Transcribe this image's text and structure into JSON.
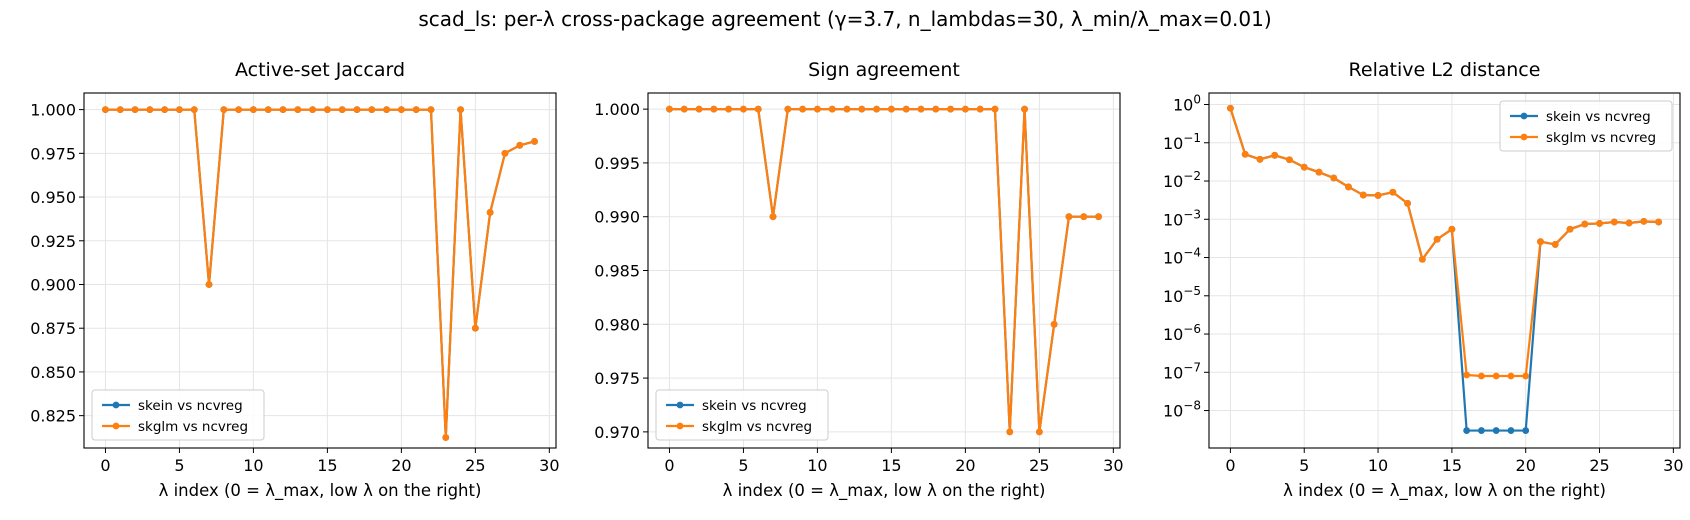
{
  "figure": {
    "title": "scad_ls: per-λ cross-package agreement (γ=3.7, n_lambdas=30, λ_min/λ_max=0.01)"
  },
  "colors": {
    "skein": "#1f77b4",
    "skglm": "#ff7f0e",
    "grid": "#e5e5e5",
    "axis": "#000000"
  },
  "chart_data": [
    {
      "type": "line",
      "title": "Active-set Jaccard",
      "xlabel": "λ index (0 = λ_max, low λ on the right)",
      "ylabel": "",
      "xlim": [
        -1.45,
        30.45
      ],
      "ylim": [
        0.8065,
        1.0095
      ],
      "xticks": [
        0,
        5,
        10,
        15,
        20,
        25,
        30
      ],
      "yticks": [
        0.825,
        0.85,
        0.875,
        0.9,
        0.925,
        0.95,
        0.975,
        1.0
      ],
      "ytick_labels": [
        "0.825",
        "0.850",
        "0.875",
        "0.900",
        "0.925",
        "0.950",
        "0.975",
        "1.000"
      ],
      "yscale": "linear",
      "grid": true,
      "legend": "lower-left",
      "x": [
        0,
        1,
        2,
        3,
        4,
        5,
        6,
        7,
        8,
        9,
        10,
        11,
        12,
        13,
        14,
        15,
        16,
        17,
        18,
        19,
        20,
        21,
        22,
        23,
        24,
        25,
        26,
        27,
        28,
        29
      ],
      "series": [
        {
          "name": "skein vs ncvreg",
          "values": [
            1,
            1,
            1,
            1,
            1,
            1,
            1,
            0.9,
            1,
            1,
            1,
            1,
            1,
            1,
            1,
            1,
            1,
            1,
            1,
            1,
            1,
            1,
            1,
            0.8125,
            1,
            0.875,
            0.9412,
            0.975,
            0.9796,
            0.9818
          ]
        },
        {
          "name": "skglm vs ncvreg",
          "values": [
            1,
            1,
            1,
            1,
            1,
            1,
            1,
            0.9,
            1,
            1,
            1,
            1,
            1,
            1,
            1,
            1,
            1,
            1,
            1,
            1,
            1,
            1,
            1,
            0.8125,
            1,
            0.875,
            0.9412,
            0.975,
            0.9796,
            0.9818
          ]
        }
      ]
    },
    {
      "type": "line",
      "title": "Sign agreement",
      "xlabel": "λ index (0 = λ_max, low λ on the right)",
      "ylabel": "",
      "xlim": [
        -1.45,
        30.45
      ],
      "ylim": [
        0.9685,
        1.0015
      ],
      "xticks": [
        0,
        5,
        10,
        15,
        20,
        25,
        30
      ],
      "yticks": [
        0.97,
        0.975,
        0.98,
        0.985,
        0.99,
        0.995,
        1.0
      ],
      "ytick_labels": [
        "0.970",
        "0.975",
        "0.980",
        "0.985",
        "0.990",
        "0.995",
        "1.000"
      ],
      "yscale": "linear",
      "grid": true,
      "legend": "lower-left",
      "x": [
        0,
        1,
        2,
        3,
        4,
        5,
        6,
        7,
        8,
        9,
        10,
        11,
        12,
        13,
        14,
        15,
        16,
        17,
        18,
        19,
        20,
        21,
        22,
        23,
        24,
        25,
        26,
        27,
        28,
        29
      ],
      "series": [
        {
          "name": "skein vs ncvreg",
          "values": [
            1,
            1,
            1,
            1,
            1,
            1,
            1,
            0.99,
            1,
            1,
            1,
            1,
            1,
            1,
            1,
            1,
            1,
            1,
            1,
            1,
            1,
            1,
            1,
            0.97,
            1,
            0.97,
            0.98,
            0.99,
            0.99,
            0.99
          ]
        },
        {
          "name": "skglm vs ncvreg",
          "values": [
            1,
            1,
            1,
            1,
            1,
            1,
            1,
            0.99,
            1,
            1,
            1,
            1,
            1,
            1,
            1,
            1,
            1,
            1,
            1,
            1,
            1,
            1,
            1,
            0.97,
            1,
            0.97,
            0.98,
            0.99,
            0.99,
            0.99
          ]
        }
      ]
    },
    {
      "type": "line",
      "title": "Relative L2 distance",
      "xlabel": "λ index (0 = λ_max, low λ on the right)",
      "ylabel": "",
      "xlim": [
        -1.45,
        30.45
      ],
      "ylim": [
        1.05e-09,
        2.0
      ],
      "xticks": [
        0,
        5,
        10,
        15,
        20,
        25,
        30
      ],
      "yticks": [
        1e-08,
        1e-07,
        1e-06,
        1e-05,
        0.0001,
        0.001,
        0.01,
        0.1,
        1
      ],
      "ytick_exponents": [
        "−8",
        "−7",
        "−6",
        "−5",
        "−4",
        "−3",
        "−2",
        "−1",
        "0"
      ],
      "ytick_base": "10",
      "yscale": "log",
      "grid": true,
      "legend": "upper-right",
      "x": [
        0,
        1,
        2,
        3,
        4,
        5,
        6,
        7,
        8,
        9,
        10,
        11,
        12,
        13,
        14,
        15,
        16,
        17,
        18,
        19,
        20,
        21,
        22,
        23,
        24,
        25,
        26,
        27,
        28,
        29
      ],
      "series": [
        {
          "name": "skein vs ncvreg",
          "values": [
            0.8,
            0.05,
            0.037,
            0.047,
            0.036,
            0.023,
            0.017,
            0.012,
            0.007,
            0.0043,
            0.0042,
            0.0051,
            0.0026,
            9e-05,
            0.0003,
            0.00055,
            3e-09,
            3e-09,
            3e-09,
            3e-09,
            3e-09,
            0.00026,
            0.00022,
            0.00055,
            0.00075,
            0.00078,
            0.00085,
            0.0008,
            0.00088,
            0.00085
          ]
        },
        {
          "name": "skglm vs ncvreg",
          "values": [
            0.8,
            0.05,
            0.037,
            0.047,
            0.036,
            0.023,
            0.017,
            0.012,
            0.007,
            0.0043,
            0.0042,
            0.0051,
            0.0026,
            9e-05,
            0.0003,
            0.00055,
            8.5e-08,
            8e-08,
            8e-08,
            8e-08,
            8e-08,
            0.00026,
            0.00022,
            0.00055,
            0.00075,
            0.00078,
            0.00085,
            0.0008,
            0.00088,
            0.00085
          ]
        }
      ]
    }
  ]
}
